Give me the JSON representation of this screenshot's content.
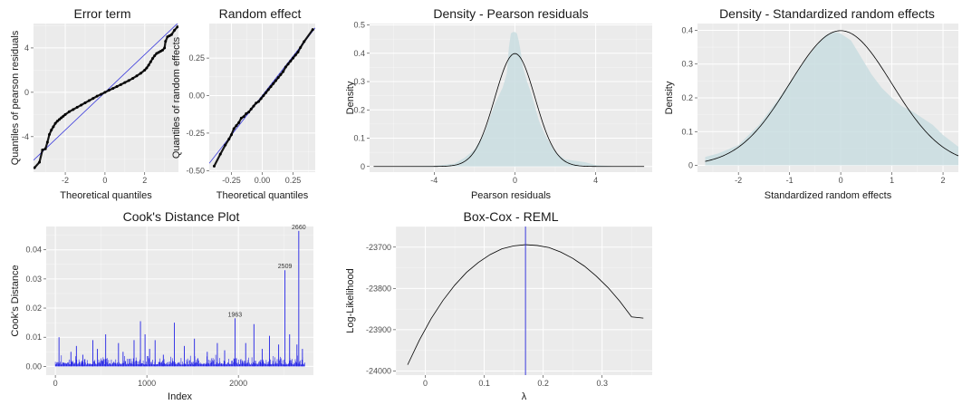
{
  "colors": {
    "panel_bg": "#ebebeb",
    "grid": "#ffffff",
    "points": "#000000",
    "ref_line": "#3b3bdc",
    "density_fill": "#c9dde1",
    "curve": "#000000",
    "cooks_bars": "#2323e6",
    "vline": "#3b3bdc"
  },
  "chart_data": [
    {
      "id": "qq_error",
      "type": "scatter",
      "title": "Error term",
      "xlabel": "Theoretical quantiles",
      "ylabel": "Quantiles of pearson residuals",
      "xlim": [
        -3.6,
        3.7
      ],
      "ylim": [
        -7.2,
        6.2
      ],
      "xticks": [
        -2,
        0,
        2
      ],
      "yticks": [
        -4,
        0,
        4
      ],
      "ref_line": {
        "intercept": 0,
        "slope": 1.7
      },
      "points": [
        [
          -3.55,
          -6.8
        ],
        [
          -3.3,
          -6.3
        ],
        [
          -3.15,
          -5.2
        ],
        [
          -3.0,
          -5.1
        ],
        [
          -2.9,
          -4.5
        ],
        [
          -2.8,
          -3.8
        ],
        [
          -2.7,
          -3.4
        ],
        [
          -2.6,
          -3.1
        ],
        [
          -2.5,
          -2.8
        ],
        [
          -2.4,
          -2.6
        ],
        [
          -2.3,
          -2.45
        ],
        [
          -2.2,
          -2.3
        ],
        [
          -2.1,
          -2.15
        ],
        [
          -2.0,
          -2.0
        ],
        [
          -1.8,
          -1.75
        ],
        [
          -1.6,
          -1.55
        ],
        [
          -1.4,
          -1.35
        ],
        [
          -1.2,
          -1.15
        ],
        [
          -1.0,
          -0.95
        ],
        [
          -0.8,
          -0.75
        ],
        [
          -0.6,
          -0.55
        ],
        [
          -0.4,
          -0.35
        ],
        [
          -0.2,
          -0.18
        ],
        [
          0.0,
          0.0
        ],
        [
          0.2,
          0.18
        ],
        [
          0.4,
          0.35
        ],
        [
          0.6,
          0.52
        ],
        [
          0.8,
          0.7
        ],
        [
          1.0,
          0.88
        ],
        [
          1.2,
          1.06
        ],
        [
          1.4,
          1.26
        ],
        [
          1.6,
          1.48
        ],
        [
          1.8,
          1.72
        ],
        [
          2.0,
          2.0
        ],
        [
          2.1,
          2.2
        ],
        [
          2.2,
          2.45
        ],
        [
          2.3,
          2.75
        ],
        [
          2.4,
          3.05
        ],
        [
          2.5,
          3.3
        ],
        [
          2.6,
          3.5
        ],
        [
          2.7,
          3.6
        ],
        [
          2.8,
          3.7
        ],
        [
          2.9,
          3.8
        ],
        [
          3.0,
          4.0
        ],
        [
          3.05,
          4.6
        ],
        [
          3.15,
          5.0
        ],
        [
          3.25,
          5.1
        ],
        [
          3.35,
          5.2
        ],
        [
          3.5,
          5.6
        ],
        [
          3.65,
          5.9
        ]
      ]
    },
    {
      "id": "qq_random",
      "type": "scatter",
      "title": "Random effect",
      "xlabel": "Theoretical quantiles",
      "ylabel": "Quantiles of random effects",
      "xlim": [
        -0.43,
        0.43
      ],
      "ylim": [
        -0.51,
        0.48
      ],
      "xticks": [
        -0.25,
        0.0,
        0.25
      ],
      "ytick_labels": [
        "-0.50",
        "-0.25",
        "0.00",
        "0.25"
      ],
      "yticks": [
        -0.5,
        -0.25,
        0.0,
        0.25
      ],
      "ref_line": {
        "intercept": 0,
        "slope": 1.05
      },
      "points": [
        [
          -0.39,
          -0.47
        ],
        [
          -0.34,
          -0.39
        ],
        [
          -0.3,
          -0.33
        ],
        [
          -0.27,
          -0.29
        ],
        [
          -0.25,
          -0.26
        ],
        [
          -0.23,
          -0.22
        ],
        [
          -0.21,
          -0.2
        ],
        [
          -0.19,
          -0.18
        ],
        [
          -0.17,
          -0.15
        ],
        [
          -0.15,
          -0.14
        ],
        [
          -0.13,
          -0.12
        ],
        [
          -0.11,
          -0.11
        ],
        [
          -0.09,
          -0.09
        ],
        [
          -0.07,
          -0.07
        ],
        [
          -0.05,
          -0.05
        ],
        [
          -0.03,
          -0.04
        ],
        [
          -0.01,
          -0.02
        ],
        [
          0.01,
          0.0
        ],
        [
          0.03,
          0.02
        ],
        [
          0.05,
          0.04
        ],
        [
          0.07,
          0.06
        ],
        [
          0.09,
          0.08
        ],
        [
          0.11,
          0.1
        ],
        [
          0.13,
          0.12
        ],
        [
          0.15,
          0.14
        ],
        [
          0.17,
          0.16
        ],
        [
          0.19,
          0.19
        ],
        [
          0.21,
          0.21
        ],
        [
          0.23,
          0.23
        ],
        [
          0.25,
          0.25
        ],
        [
          0.27,
          0.27
        ],
        [
          0.29,
          0.29
        ],
        [
          0.31,
          0.32
        ],
        [
          0.34,
          0.36
        ],
        [
          0.41,
          0.44
        ]
      ]
    },
    {
      "id": "dens_pearson",
      "type": "area",
      "title": "Density - Pearson residuals",
      "xlabel": "Pearson residuals",
      "ylabel": "Density",
      "xlim": [
        -7.2,
        6.8
      ],
      "ylim": [
        -0.02,
        0.505
      ],
      "xticks": [
        -4,
        0,
        4
      ],
      "yticks": [
        0.0,
        0.1,
        0.2,
        0.3,
        0.4,
        0.5
      ],
      "empirical": {
        "x": [
          -7,
          -4,
          -3,
          -2.5,
          -2,
          -1.5,
          -1.2,
          -1.0,
          -0.8,
          -0.6,
          -0.4,
          -0.3,
          -0.2,
          -0.1,
          0,
          0.1,
          0.2,
          0.3,
          0.4,
          0.6,
          0.8,
          1.0,
          1.2,
          1.5,
          2,
          2.5,
          3,
          3.5,
          4,
          5,
          6.5
        ],
        "y": [
          0.0,
          0.002,
          0.01,
          0.03,
          0.06,
          0.12,
          0.18,
          0.22,
          0.25,
          0.28,
          0.33,
          0.42,
          0.47,
          0.475,
          0.475,
          0.47,
          0.44,
          0.4,
          0.35,
          0.3,
          0.26,
          0.21,
          0.16,
          0.11,
          0.05,
          0.025,
          0.02,
          0.015,
          0.005,
          0.0,
          0.0
        ]
      },
      "normal_curve": {
        "mean": 0,
        "sd": 1
      }
    },
    {
      "id": "dens_random",
      "type": "area",
      "title": "Density - Standardized random effects",
      "xlabel": "Standardized random effects",
      "ylabel": "Density",
      "xlim": [
        -2.8,
        2.3
      ],
      "ylim": [
        -0.02,
        0.42
      ],
      "xticks": [
        -2,
        -1,
        0,
        1,
        2
      ],
      "yticks": [
        0.0,
        0.1,
        0.2,
        0.3,
        0.4
      ],
      "empirical": {
        "x": [
          -2.65,
          -2.4,
          -2.0,
          -1.6,
          -1.2,
          -0.8,
          -0.5,
          -0.3,
          -0.1,
          0.0,
          0.2,
          0.4,
          0.6,
          0.8,
          1.0,
          1.2,
          1.4,
          1.6,
          1.8,
          2.0,
          2.3
        ],
        "y": [
          0.025,
          0.035,
          0.06,
          0.12,
          0.2,
          0.29,
          0.35,
          0.385,
          0.395,
          0.39,
          0.37,
          0.32,
          0.27,
          0.23,
          0.2,
          0.175,
          0.16,
          0.14,
          0.12,
          0.09,
          0.055
        ]
      },
      "normal_curve": {
        "mean": 0,
        "sd": 1
      }
    },
    {
      "id": "cooks",
      "type": "bar",
      "title": "Cook's Distance Plot",
      "xlabel": "Index",
      "ylabel": "Cook's Distance",
      "xlim": [
        -100,
        2820
      ],
      "ylim": [
        -0.003,
        0.048
      ],
      "xticks": [
        0,
        1000,
        2000
      ],
      "ytick_labels": [
        "0.00",
        "0.01",
        "0.02",
        "0.03",
        "0.04"
      ],
      "yticks": [
        0.0,
        0.01,
        0.02,
        0.03,
        0.04
      ],
      "n": 2730,
      "spikes": [
        [
          40,
          0.01
        ],
        [
          170,
          0.005
        ],
        [
          230,
          0.007
        ],
        [
          300,
          0.004
        ],
        [
          410,
          0.009
        ],
        [
          460,
          0.006
        ],
        [
          550,
          0.011
        ],
        [
          690,
          0.008
        ],
        [
          740,
          0.005
        ],
        [
          860,
          0.009
        ],
        [
          930,
          0.0155
        ],
        [
          980,
          0.011
        ],
        [
          1030,
          0.006
        ],
        [
          1090,
          0.009
        ],
        [
          1180,
          0.004
        ],
        [
          1300,
          0.015
        ],
        [
          1410,
          0.007
        ],
        [
          1520,
          0.0095
        ],
        [
          1660,
          0.005
        ],
        [
          1770,
          0.008
        ],
        [
          1850,
          0.0055
        ],
        [
          1963,
          0.0165
        ],
        [
          2080,
          0.008
        ],
        [
          2170,
          0.0145
        ],
        [
          2260,
          0.006
        ],
        [
          2340,
          0.0105
        ],
        [
          2440,
          0.0075
        ],
        [
          2509,
          0.033
        ],
        [
          2560,
          0.011
        ],
        [
          2640,
          0.0075
        ],
        [
          2660,
          0.0465
        ],
        [
          2700,
          0.006
        ]
      ],
      "annotations": [
        {
          "x": 1963,
          "y": 0.0165,
          "label": "1963"
        },
        {
          "x": 2509,
          "y": 0.033,
          "label": "2509"
        },
        {
          "x": 2660,
          "y": 0.0465,
          "label": "2660"
        }
      ]
    },
    {
      "id": "boxcox",
      "type": "line",
      "title": "Box-Cox - REML",
      "xlabel": "λ",
      "ylabel": "Log-Likelihood",
      "xlim": [
        -0.05,
        0.385
      ],
      "ylim": [
        -24010,
        -23650
      ],
      "xticks": [
        0.0,
        0.1,
        0.2,
        0.3
      ],
      "ytick_labels": [
        "-24000",
        "-23900",
        "-23800",
        "-23700"
      ],
      "yticks": [
        -24000,
        -23900,
        -23800,
        -23700
      ],
      "curve": {
        "x": [
          -0.03,
          -0.01,
          0.01,
          0.03,
          0.05,
          0.07,
          0.09,
          0.11,
          0.13,
          0.15,
          0.17,
          0.19,
          0.21,
          0.23,
          0.25,
          0.27,
          0.29,
          0.31,
          0.33,
          0.35,
          0.37
        ],
        "y": [
          -23985,
          -23925,
          -23873,
          -23829,
          -23792,
          -23761,
          -23737,
          -23718,
          -23704,
          -23697,
          -23694,
          -23696,
          -23701,
          -23712,
          -23727,
          -23746,
          -23770,
          -23798,
          -23831,
          -23869,
          -23872
        ]
      },
      "vline_x": 0.17
    }
  ]
}
